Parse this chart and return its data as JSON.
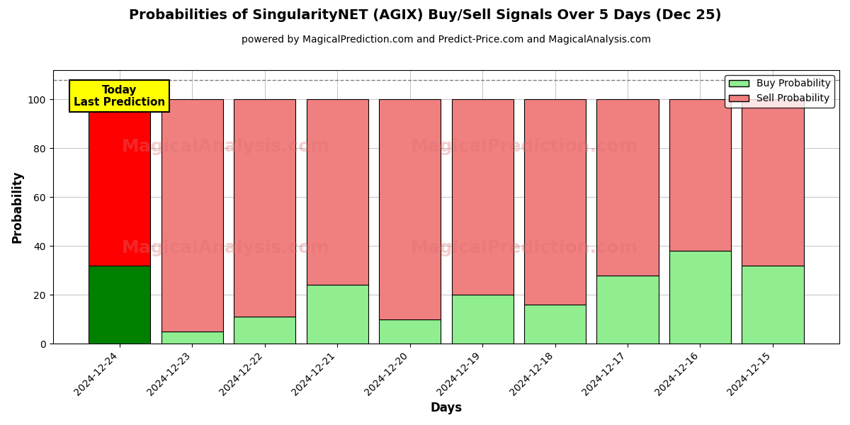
{
  "title": "Probabilities of SingularityNET (AGIX) Buy/Sell Signals Over 5 Days (Dec 25)",
  "subtitle": "powered by MagicalPrediction.com and Predict-Price.com and MagicalAnalysis.com",
  "xlabel": "Days",
  "ylabel": "Probability",
  "watermark_left": "MagicalAnalysis.com",
  "watermark_right": "MagicalPrediction.com",
  "legend_buy": "Buy Probability",
  "legend_sell": "Sell Probability",
  "annotation": "Today\nLast Prediction",
  "categories": [
    "2024-12-24",
    "2024-12-23",
    "2024-12-22",
    "2024-12-21",
    "2024-12-20",
    "2024-12-19",
    "2024-12-18",
    "2024-12-17",
    "2024-12-16",
    "2024-12-15"
  ],
  "buy_values": [
    32,
    5,
    11,
    24,
    10,
    20,
    16,
    28,
    38,
    32
  ],
  "sell_values": [
    68,
    95,
    89,
    76,
    90,
    80,
    84,
    72,
    62,
    68
  ],
  "today_buy_color": "#008000",
  "today_sell_color": "#FF0000",
  "other_buy_color": "#90EE90",
  "other_sell_color": "#F08080",
  "bar_edgecolor": "#000000",
  "bar_linewidth": 0.8,
  "bar_width": 0.85,
  "ylim": [
    0,
    112
  ],
  "yticks": [
    0,
    20,
    40,
    60,
    80,
    100
  ],
  "dashed_line_y": 108,
  "dashed_line_color": "gray",
  "grid_color": "#aaaaaa",
  "bg_color": "#ffffff",
  "annotation_bg": "#FFFF00",
  "annotation_color": "#000000",
  "annotation_fontsize": 11,
  "title_fontsize": 14,
  "subtitle_fontsize": 10,
  "axis_label_fontsize": 12,
  "tick_fontsize": 10,
  "legend_fontsize": 10
}
